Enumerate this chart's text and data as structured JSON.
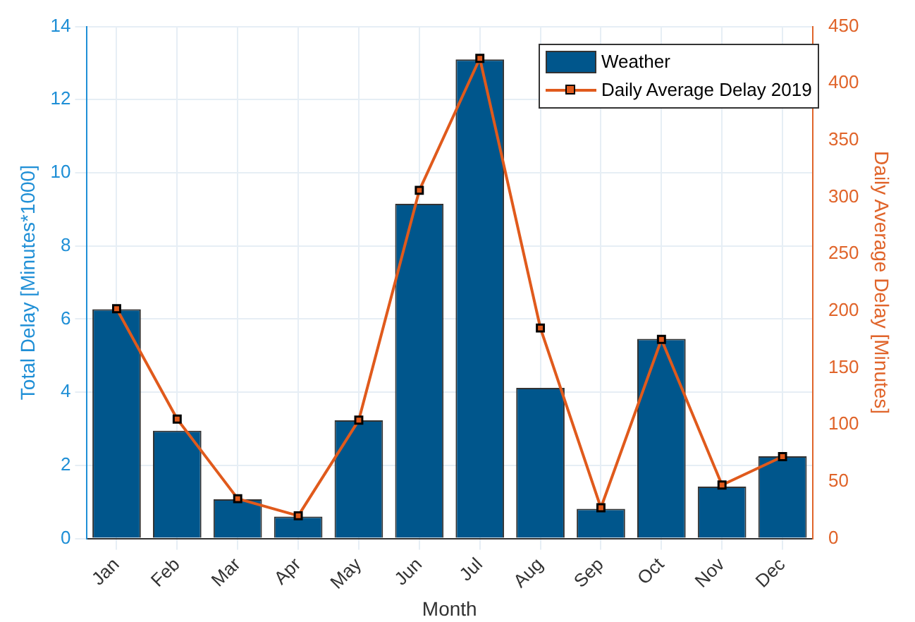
{
  "chart_data": {
    "type": "bar",
    "xlabel": "Month",
    "ylabel": "Total Delay [Minutes*1000]",
    "y2label": "Daily Average Delay [Minutes]",
    "categories": [
      "Jan",
      "Feb",
      "Mar",
      "Apr",
      "May",
      "Jun",
      "Jul",
      "Aug",
      "Sep",
      "Oct",
      "Nov",
      "Dec"
    ],
    "series": [
      {
        "name": "Weather",
        "color": "#00568c",
        "values": [
          6.27,
          2.95,
          1.07,
          0.6,
          3.23,
          9.15,
          13.1,
          4.12,
          0.81,
          5.46,
          1.42,
          2.25
        ]
      },
      {
        "name": "Daily Average Delay 2019",
        "type": "line",
        "axis": "y2",
        "color": "#e05a1c",
        "marker": "square",
        "values": [
          202,
          105,
          35,
          20,
          104,
          306,
          422,
          185,
          27,
          175,
          47,
          72
        ]
      }
    ],
    "ylim": [
      0,
      14
    ],
    "yticks": [
      0,
      2,
      4,
      6,
      8,
      10,
      12,
      14
    ],
    "y2lim": [
      0,
      450
    ],
    "y2ticks": [
      0,
      50,
      100,
      150,
      200,
      250,
      300,
      350,
      400,
      450
    ],
    "grid": true,
    "legend": "top right"
  }
}
